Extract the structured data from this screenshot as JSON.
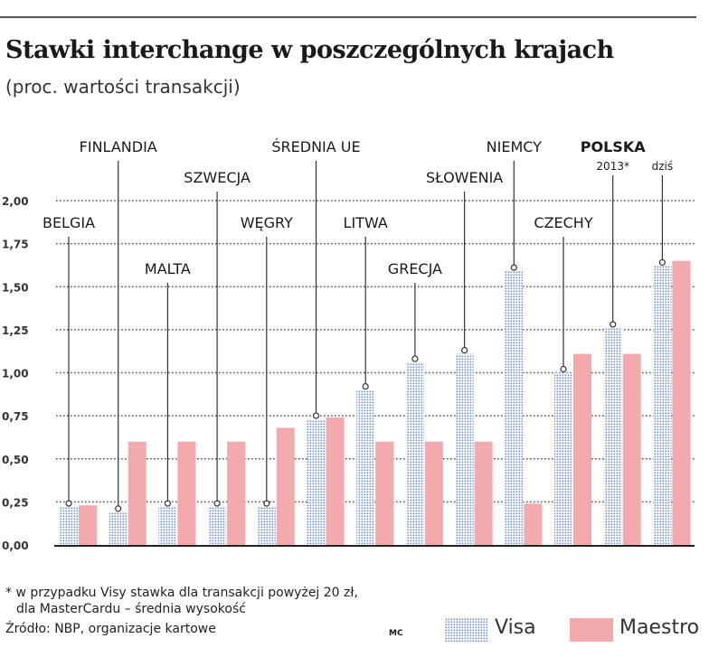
{
  "title": "Stawki interchange w poszczególnych krajach",
  "subtitle": "(proc. wartości transakcji)",
  "footnote": {
    "line1": "* w przypadku Visy stawka dla transakcji powyżej 20 zł,",
    "line2": "dla MasterCardu – średnia wysokość",
    "source": "Źródło: NBP, organizacje kartowe"
  },
  "legend": {
    "credit": "MC",
    "visa": "Visa",
    "maestro": "Maestro"
  },
  "colors": {
    "visa_dot": "#6f8fd6",
    "maestro": "#f2aaad",
    "grid": "#555555",
    "axis": "#222222"
  },
  "chart_data": {
    "type": "bar",
    "y_ticks": [
      "0,00",
      "0,25",
      "0,50",
      "0,75",
      "1,00",
      "1,25",
      "1,50",
      "1,75",
      "2,00"
    ],
    "ylim": [
      0,
      2.0
    ],
    "grid": true,
    "legend_position": "bottom-right",
    "groups": [
      {
        "label": "BELGIA",
        "visa": 0.22,
        "maestro": 0.23
      },
      {
        "label": "FINLANDIA",
        "visa": 0.19,
        "maestro": 0.6
      },
      {
        "label": "MALTA",
        "visa": 0.22,
        "maestro": 0.6
      },
      {
        "label": "SZWECJA",
        "visa": 0.22,
        "maestro": 0.6
      },
      {
        "label": "WĘGRY",
        "visa": 0.22,
        "maestro": 0.68
      },
      {
        "label": "ŚREDNIA UE",
        "visa": 0.73,
        "maestro": 0.74
      },
      {
        "label": "LITWA",
        "visa": 0.9,
        "maestro": 0.6
      },
      {
        "label": "GRECJA",
        "visa": 1.06,
        "maestro": 0.6
      },
      {
        "label": "SŁOWENIA",
        "visa": 1.11,
        "maestro": 0.6
      },
      {
        "label": "NIEMCY",
        "visa": 1.59,
        "maestro": 0.24
      },
      {
        "label": "CZECHY",
        "visa": 1.0,
        "maestro": 1.11
      },
      {
        "label": "POLSKA",
        "sublabel": "2013*",
        "visa": 1.26,
        "maestro": 1.11
      },
      {
        "label": "",
        "sublabel": "dziś",
        "visa": 1.62,
        "maestro": 1.65
      }
    ]
  }
}
